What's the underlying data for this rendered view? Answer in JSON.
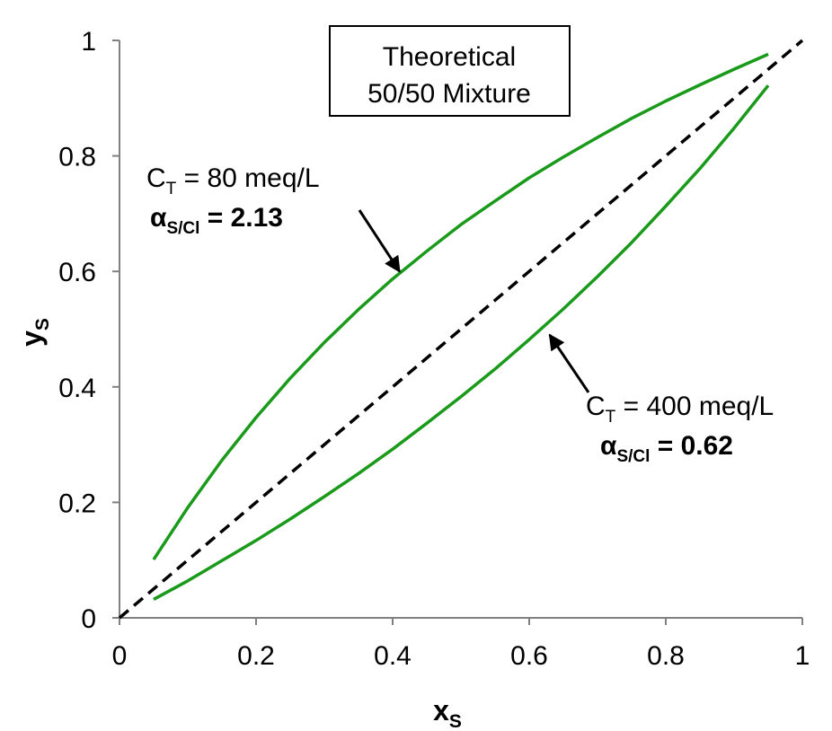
{
  "chart_data": {
    "type": "line",
    "title": "",
    "xlabel": "x",
    "xlabel_sub": "S",
    "ylabel": "y",
    "ylabel_sub": "S",
    "xlim": [
      0,
      1
    ],
    "ylim": [
      0,
      1
    ],
    "x_ticks": [
      "0",
      "0.2",
      "0.4",
      "0.6",
      "0.8",
      "1"
    ],
    "y_ticks": [
      "0",
      "0.2",
      "0.4",
      "0.6",
      "0.8",
      "1"
    ],
    "grid": false,
    "legend_box": {
      "line1": "Theoretical",
      "line2": "50/50 Mixture",
      "placement": "top-center"
    },
    "series": [
      {
        "color": "#1a9a1a",
        "style": "solid",
        "alpha": 2.13,
        "x": [
          0.05,
          0.1,
          0.15,
          0.2,
          0.25,
          0.3,
          0.35,
          0.4,
          0.45,
          0.5,
          0.55,
          0.6,
          0.65,
          0.7,
          0.75,
          0.8,
          0.85,
          0.9,
          0.95
        ],
        "y": [
          0.101,
          0.191,
          0.273,
          0.347,
          0.415,
          0.477,
          0.534,
          0.587,
          0.635,
          0.681,
          0.722,
          0.762,
          0.798,
          0.832,
          0.865,
          0.895,
          0.923,
          0.95,
          0.976
        ]
      },
      {
        "color": "#1a9a1a",
        "style": "solid",
        "alpha": 0.62,
        "x": [
          0.05,
          0.1,
          0.15,
          0.2,
          0.25,
          0.3,
          0.35,
          0.4,
          0.45,
          0.5,
          0.55,
          0.6,
          0.65,
          0.7,
          0.75,
          0.8,
          0.85,
          0.9,
          0.95
        ],
        "y": [
          0.032,
          0.064,
          0.099,
          0.134,
          0.171,
          0.21,
          0.25,
          0.292,
          0.337,
          0.383,
          0.431,
          0.482,
          0.535,
          0.591,
          0.65,
          0.713,
          0.778,
          0.848,
          0.922
        ]
      },
      {
        "color": "#000000",
        "style": "dashed",
        "x": [
          0,
          1
        ],
        "y": [
          0,
          1
        ]
      }
    ],
    "annotations": [
      {
        "text_main": "C",
        "text_sub": "T",
        "text_rest": " = 80 meq/L",
        "bold_main": "α",
        "bold_sub": "S/Cl",
        "bold_rest": " = 2.13",
        "arrow_to": [
          0.41,
          0.6
        ]
      },
      {
        "text_main": "C",
        "text_sub": "T",
        "text_rest": " = 400 meq/L",
        "bold_main": "α",
        "bold_sub": "S/Cl",
        "bold_rest": " = 0.62",
        "arrow_to": [
          0.63,
          0.49
        ]
      }
    ]
  }
}
